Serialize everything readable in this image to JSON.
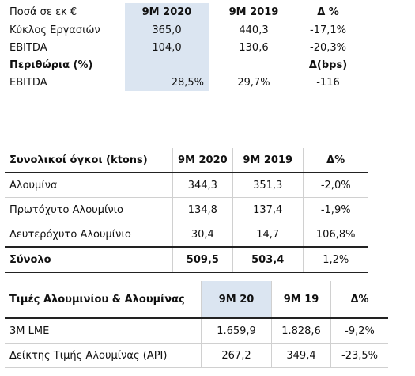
{
  "tables": [
    {
      "header": [
        "Ποσά σε εκ €",
        "9M 2020",
        "9M 2019",
        "Δ %"
      ],
      "rows": [
        [
          "Κύκλος Εργασιών",
          "365,0",
          "440,3",
          "-17,1%"
        ],
        [
          "EBITDA",
          "104,0",
          "130,6",
          "-20,3%"
        ]
      ],
      "subheader": [
        "Περιθώρια (%)",
        "Δ(bps)"
      ],
      "subrows": [
        [
          "EBITDA",
          "28,5%",
          "29,7%",
          "-116"
        ]
      ]
    },
    {
      "header": [
        "Συνολικοί όγκοι (ktons)",
        "9M 2020",
        "9M 2019",
        "Δ%"
      ],
      "rows": [
        [
          "Αλουμίνα",
          "344,3",
          "351,3",
          "-2,0%"
        ],
        [
          "Πρωτόχυτο Αλουμίνιο",
          "134,8",
          "137,4",
          "-1,9%"
        ],
        [
          "Δευτερόχυτο Αλουμίνιο",
          "30,4",
          "14,7",
          "106,8%"
        ]
      ],
      "total": [
        "Σύνολο",
        "509,5",
        "503,4",
        "1,2%"
      ]
    },
    {
      "header": [
        "Τιμές Αλουμινίου & Αλουμίνας",
        "9M 20",
        "9M 19",
        "Δ%"
      ],
      "rows": [
        [
          "3M LME",
          "1.659,9",
          "1.828,6",
          "-9,2%"
        ],
        [
          "Δείκτης Τιμής Αλουμίνας (API)",
          "267,2",
          "349,4",
          "-23,5%"
        ]
      ]
    }
  ]
}
